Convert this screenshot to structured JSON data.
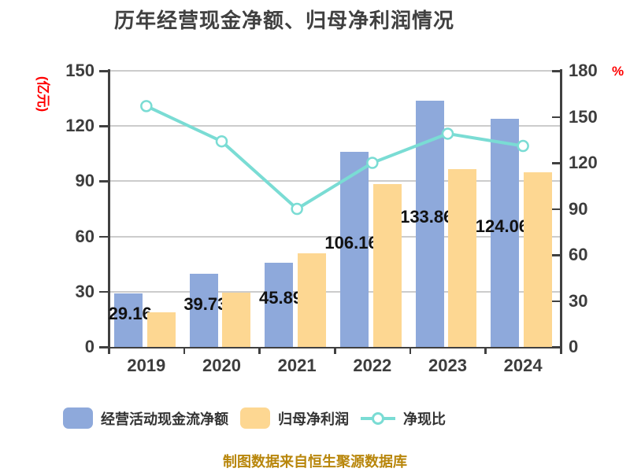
{
  "title": "历年经营现金净额、归母净利润情况",
  "footer": "制图数据来自恒生聚源数据库",
  "chart_data": {
    "type": "bar",
    "title": "历年经营现金净额、归母净利润情况",
    "categories": [
      "2019",
      "2020",
      "2021",
      "2022",
      "2023",
      "2024"
    ],
    "series": [
      {
        "name": "经营活动现金流净额",
        "type": "bar",
        "yaxis": "left",
        "color": "#8EA9DB",
        "values": [
          29.16,
          39.73,
          45.89,
          106.16,
          133.86,
          124.06
        ],
        "data_labels": [
          "29.16",
          "39.73",
          "45.89",
          "106.16",
          "133.86",
          "124.06"
        ]
      },
      {
        "name": "归母净利润",
        "type": "bar",
        "yaxis": "left",
        "color": "#FDD792",
        "values": [
          18.6,
          29.7,
          50.7,
          88.5,
          96.5,
          95.0
        ],
        "estimated": true
      },
      {
        "name": "净现比",
        "type": "line",
        "yaxis": "right",
        "color": "#7ADCD4",
        "marker": "white-circle",
        "values": [
          157,
          134,
          90,
          120,
          139,
          131
        ],
        "estimated": true
      }
    ],
    "left_axis": {
      "label": "(亿元)",
      "label_color": "#FF0000",
      "min": 0,
      "max": 150,
      "ticks": [
        0,
        30,
        60,
        90,
        120,
        150
      ]
    },
    "right_axis": {
      "label": "%",
      "label_color": "#FF0000",
      "min": 0,
      "max": 180,
      "ticks": [
        0,
        30,
        60,
        90,
        120,
        150,
        180
      ]
    },
    "grid": true,
    "legend_position": "bottom"
  },
  "colors": {
    "grid": "#CCCCCC",
    "axis": "#404040",
    "title_text": "#404040",
    "tick_text": "#3D3D3D",
    "data_label_text": "#111111",
    "footer_text": "#B8860B"
  }
}
